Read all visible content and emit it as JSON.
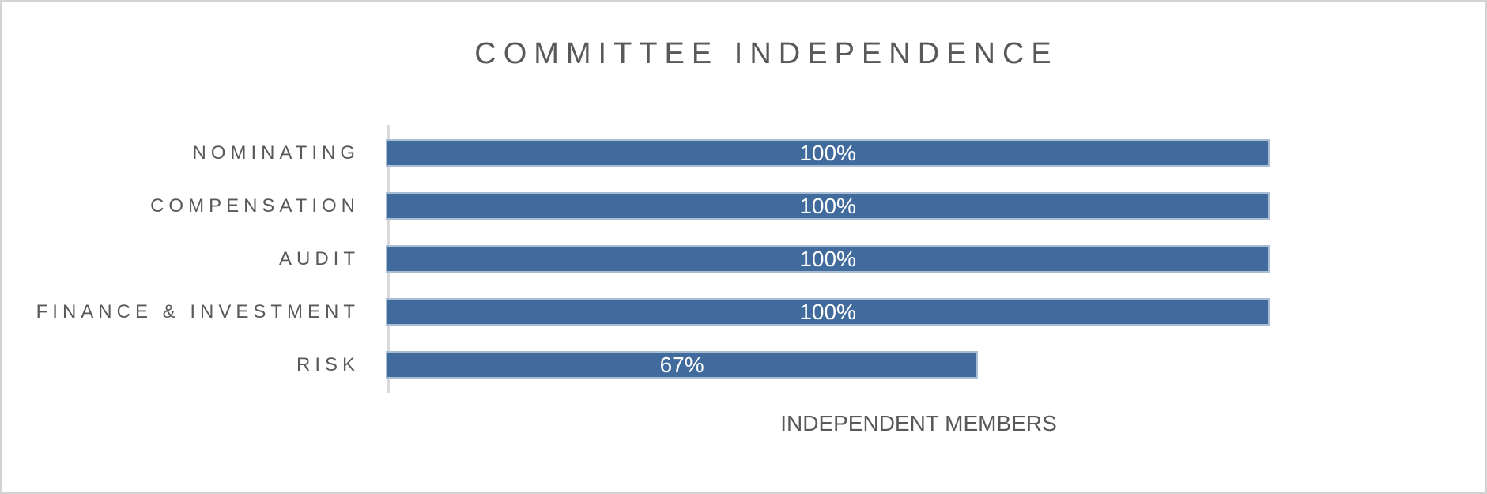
{
  "chart": {
    "title": "COMMITTEE INDEPENDENCE",
    "axis_title": "INDEPENDENT MEMBERS"
  },
  "chart_data": {
    "type": "bar",
    "orientation": "horizontal",
    "title": "COMMITTEE INDEPENDENCE",
    "xlabel": "INDEPENDENT MEMBERS",
    "ylabel": "",
    "categories": [
      "NOMINATING",
      "COMPENSATION",
      "AUDIT",
      "FINANCE & INVESTMENT",
      "RISK"
    ],
    "values": [
      100,
      100,
      100,
      100,
      67
    ],
    "value_labels": [
      "100%",
      "100%",
      "100%",
      "100%",
      "67%"
    ],
    "value_label_position": "center",
    "xlim": [
      0,
      120
    ],
    "grid": false,
    "legend": false,
    "colors": {
      "bar": "#416A9D",
      "bar_border": "#A9BDD5",
      "value_label": "#FFFFFF",
      "text": "#595959",
      "axis_line": "#D9D9D9",
      "canvas_border": "#D3D3D3"
    }
  }
}
